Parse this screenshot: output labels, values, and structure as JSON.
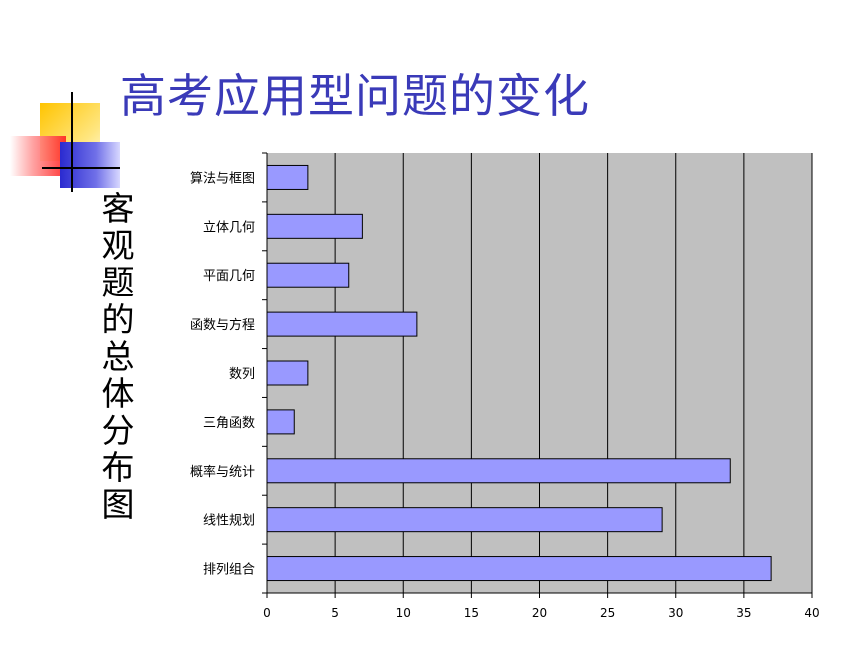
{
  "slide": {
    "title": "高考应用型问题的变化",
    "side_label": "客观题的总体分布图"
  },
  "colors": {
    "title": "#3a3ab8",
    "plot_background": "#c0c0c0",
    "bar_fill": "#9999ff",
    "bar_stroke": "#000000",
    "deco_yellow": "#ffd21f",
    "deco_red": "#ff3030",
    "deco_blue": "#3b3bd6"
  },
  "chart_data": {
    "type": "bar",
    "orientation": "horizontal",
    "categories": [
      "算法与框图",
      "立体几何",
      "平面几何",
      "函数与方程",
      "数列",
      "三角函数",
      "概率与统计",
      "线性规划",
      "排列组合"
    ],
    "values": [
      3,
      7,
      6,
      11,
      3,
      2,
      34,
      29,
      37
    ],
    "title": "",
    "xlabel": "",
    "ylabel": "",
    "xlim": [
      0,
      40
    ],
    "x_ticks": [
      "0",
      "5",
      "10",
      "15",
      "20",
      "25",
      "30",
      "35",
      "40"
    ],
    "grid": "vertical",
    "legend": "none"
  }
}
